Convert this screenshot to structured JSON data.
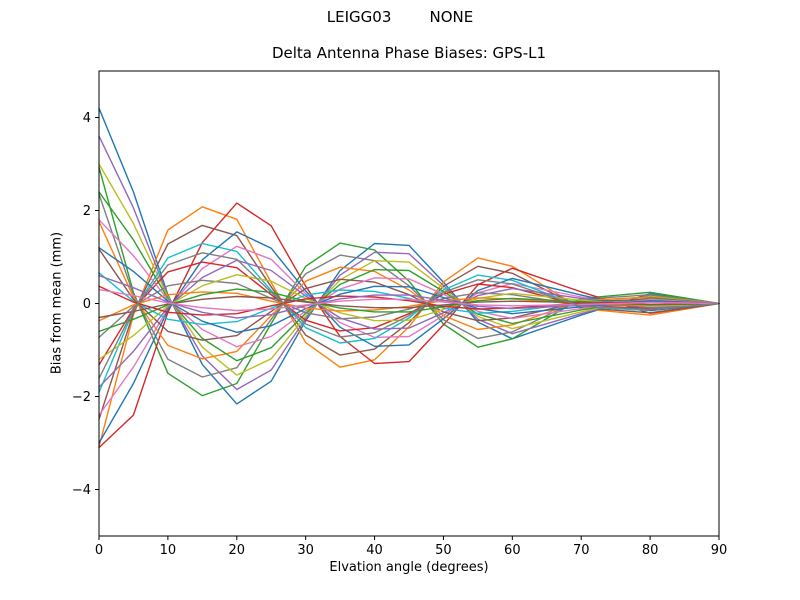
{
  "figure": {
    "suptitle": "LEIGG03        NONE",
    "background": "#ffffff",
    "text_color": "#000000"
  },
  "chart_data": {
    "type": "line",
    "title": "Delta Antenna Phase Biases: GPS-L1",
    "xlabel": "Elvation angle (degrees)",
    "ylabel": "Bias from mean (mm)",
    "xlim": [
      0,
      90
    ],
    "ylim": [
      -5,
      5
    ],
    "xticks": [
      0,
      10,
      20,
      30,
      40,
      50,
      60,
      70,
      80,
      90
    ],
    "yticks": [
      -4,
      -2,
      0,
      2,
      4
    ],
    "grid": false,
    "legend": "none",
    "linewidth": 1.4,
    "x": [
      0,
      5,
      10,
      15,
      20,
      25,
      30,
      35,
      40,
      45,
      50,
      55,
      60,
      70,
      80,
      90
    ],
    "series": [
      {
        "color": "#1f77b4",
        "values": [
          4.2,
          2.4,
          0.19,
          -1.31,
          -2.16,
          -1.67,
          -0.37,
          0.71,
          1.29,
          1.25,
          0.46,
          -0.4,
          -0.76,
          -0.25,
          0.21,
          0
        ]
      },
      {
        "color": "#ff7f0e",
        "values": [
          -3.08,
          -0.25,
          1.58,
          2.08,
          1.81,
          0.45,
          -0.84,
          -1.37,
          -1.21,
          -0.5,
          0.46,
          0.98,
          0.8,
          -0.11,
          -0.25,
          0
        ]
      },
      {
        "color": "#2ca02c",
        "values": [
          2.93,
          0.24,
          -1.5,
          -1.98,
          -1.72,
          -0.43,
          0.8,
          1.3,
          1.15,
          0.48,
          -0.44,
          -0.94,
          -0.76,
          0.11,
          0.24,
          0
        ]
      },
      {
        "color": "#d62728",
        "values": [
          -3.1,
          -2.4,
          -0.19,
          1.31,
          2.16,
          1.67,
          0.37,
          -0.71,
          -1.29,
          -1.25,
          -0.46,
          0.4,
          0.76,
          0.25,
          -0.21,
          0
        ]
      },
      {
        "color": "#9467bd",
        "values": [
          3.6,
          2.06,
          0.16,
          -1.13,
          -1.85,
          -1.43,
          -0.32,
          0.61,
          1.1,
          1.07,
          0.39,
          -0.34,
          -0.65,
          -0.22,
          0.18,
          0
        ]
      },
      {
        "color": "#8c564b",
        "values": [
          -2.49,
          -0.2,
          1.28,
          1.68,
          1.46,
          0.36,
          -0.68,
          -1.11,
          -0.98,
          -0.41,
          0.37,
          0.8,
          0.65,
          -0.09,
          -0.2,
          0
        ]
      },
      {
        "color": "#e377c2",
        "values": [
          -2.4,
          -1.37,
          -0.11,
          0.75,
          1.23,
          0.95,
          0.21,
          -0.41,
          -0.73,
          -0.71,
          -0.26,
          0.23,
          0.43,
          0.14,
          -0.12,
          0
        ]
      },
      {
        "color": "#7f7f7f",
        "values": [
          2.35,
          0.19,
          -1.2,
          -1.58,
          -1.38,
          -0.34,
          0.64,
          1.04,
          0.92,
          0.38,
          -0.35,
          -0.75,
          -0.61,
          0.09,
          0.19,
          0
        ]
      },
      {
        "color": "#bcbd22",
        "values": [
          3.0,
          1.72,
          0.14,
          -0.94,
          -1.54,
          -1.19,
          -0.27,
          0.51,
          0.92,
          0.89,
          0.33,
          -0.28,
          -0.54,
          -0.18,
          0.15,
          0
        ]
      },
      {
        "color": "#17becf",
        "values": [
          -1.91,
          -0.15,
          0.98,
          1.29,
          1.12,
          0.28,
          -0.52,
          -0.85,
          -0.75,
          -0.31,
          0.29,
          0.61,
          0.5,
          -0.07,
          -0.15,
          0
        ]
      },
      {
        "color": "#1f77b4",
        "values": [
          -3.0,
          -1.72,
          -0.14,
          0.94,
          1.54,
          1.19,
          0.27,
          -0.51,
          -0.92,
          -0.89,
          -0.33,
          0.28,
          0.54,
          0.18,
          -0.15,
          0
        ]
      },
      {
        "color": "#ff7f0e",
        "values": [
          1.76,
          0.14,
          -0.9,
          -1.19,
          -1.03,
          -0.26,
          0.48,
          0.78,
          0.69,
          0.29,
          -0.26,
          -0.56,
          -0.46,
          0.06,
          0.14,
          0
        ]
      },
      {
        "color": "#2ca02c",
        "values": [
          2.4,
          1.37,
          0.11,
          -0.75,
          -1.23,
          -0.95,
          -0.21,
          0.41,
          0.73,
          0.71,
          0.26,
          -0.23,
          -0.43,
          -0.14,
          0.12,
          0
        ]
      },
      {
        "color": "#d62728",
        "values": [
          -1.32,
          -0.11,
          0.68,
          0.89,
          0.77,
          0.19,
          -0.36,
          -0.59,
          -0.52,
          -0.22,
          0.2,
          0.42,
          0.34,
          -0.05,
          -0.11,
          0
        ]
      },
      {
        "color": "#9467bd",
        "values": [
          -1.8,
          -1.03,
          -0.08,
          0.56,
          0.93,
          0.71,
          0.16,
          -0.31,
          -0.55,
          -0.53,
          -0.2,
          0.17,
          0.32,
          0.11,
          -0.09,
          0
        ]
      },
      {
        "color": "#8c564b",
        "values": [
          1.17,
          0.09,
          -0.6,
          -0.79,
          -0.69,
          -0.17,
          0.32,
          0.52,
          0.46,
          0.19,
          -0.18,
          -0.37,
          -0.31,
          0.04,
          0.09,
          0
        ]
      },
      {
        "color": "#e377c2",
        "values": [
          1.8,
          1.03,
          0.08,
          -0.56,
          -0.93,
          -0.71,
          -0.16,
          0.31,
          0.55,
          0.53,
          0.2,
          -0.17,
          -0.32,
          -0.11,
          0.09,
          0
        ]
      },
      {
        "color": "#7f7f7f",
        "values": [
          -0.73,
          -0.06,
          0.38,
          0.5,
          0.43,
          0.11,
          -0.2,
          -0.33,
          -0.29,
          -0.12,
          0.11,
          0.23,
          0.19,
          -0.03,
          -0.06,
          0
        ]
      },
      {
        "color": "#bcbd22",
        "values": [
          -1.2,
          -0.69,
          -0.05,
          0.38,
          0.62,
          0.48,
          0.11,
          -0.2,
          -0.37,
          -0.36,
          -0.13,
          0.11,
          0.22,
          0.07,
          -0.06,
          0
        ]
      },
      {
        "color": "#17becf",
        "values": [
          0.66,
          0.05,
          -0.34,
          -0.45,
          -0.39,
          -0.1,
          0.18,
          0.29,
          0.26,
          0.11,
          -0.1,
          -0.21,
          -0.17,
          0.02,
          0.05,
          0
        ]
      },
      {
        "color": "#1f77b4",
        "values": [
          1.2,
          0.69,
          0.05,
          -0.38,
          -0.62,
          -0.48,
          -0.11,
          0.2,
          0.37,
          0.36,
          0.13,
          -0.11,
          -0.22,
          -0.07,
          0.06,
          0
        ]
      },
      {
        "color": "#ff7f0e",
        "values": [
          -0.37,
          -0.03,
          0.19,
          0.25,
          0.22,
          0.05,
          -0.1,
          -0.16,
          -0.14,
          -0.06,
          0.06,
          0.12,
          0.1,
          -0.01,
          -0.03,
          0
        ]
      },
      {
        "color": "#2ca02c",
        "values": [
          -0.6,
          -0.34,
          -0.03,
          0.19,
          0.31,
          0.24,
          0.05,
          -0.1,
          -0.18,
          -0.18,
          -0.07,
          0.06,
          0.11,
          0.04,
          -0.03,
          0
        ]
      },
      {
        "color": "#d62728",
        "values": [
          0.37,
          0.03,
          -0.19,
          -0.25,
          -0.22,
          -0.05,
          0.1,
          0.16,
          0.14,
          0.06,
          -0.06,
          -0.12,
          -0.1,
          0.01,
          0.03,
          0
        ]
      },
      {
        "color": "#9467bd",
        "values": [
          0.6,
          0.34,
          0.03,
          -0.19,
          -0.31,
          -0.24,
          -0.05,
          0.1,
          0.18,
          0.18,
          0.07,
          -0.06,
          -0.11,
          -0.04,
          0.03,
          0
        ]
      },
      {
        "color": "#8c564b",
        "values": [
          -0.3,
          -0.17,
          -0.01,
          0.09,
          0.15,
          0.12,
          0.03,
          -0.05,
          -0.09,
          -0.09,
          -0.03,
          0.03,
          0.05,
          0.02,
          -0.02,
          0
        ]
      },
      {
        "color": "#e377c2",
        "values": [
          0.3,
          0.17,
          0.01,
          -0.09,
          -0.15,
          -0.12,
          -0.03,
          0.05,
          0.09,
          0.09,
          0.03,
          -0.03,
          -0.05,
          -0.02,
          0.02,
          0
        ]
      },
      {
        "color": "#7f7f7f",
        "values": [
          -1.61,
          -0.13,
          0.83,
          1.09,
          0.95,
          0.24,
          -0.44,
          -0.72,
          -0.63,
          -0.26,
          0.24,
          0.51,
          0.42,
          -0.06,
          -0.13,
          0
        ]
      }
    ]
  }
}
